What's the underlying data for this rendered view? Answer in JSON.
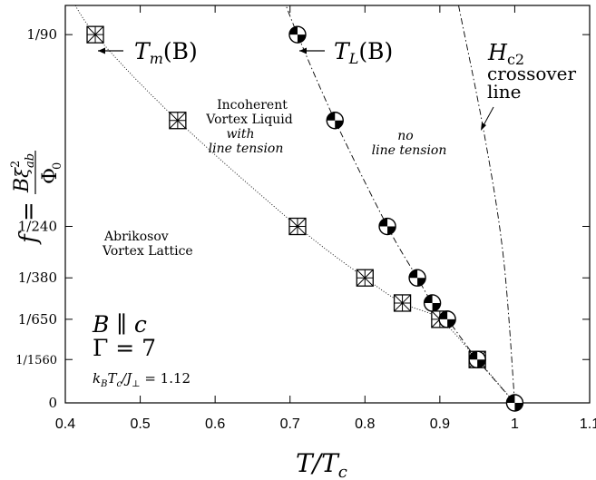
{
  "chart_data": {
    "type": "scatter",
    "xlabel": "T/T",
    "xlabel_sub": "c",
    "ylabel": "f = Bξ²ab / Φ0",
    "xlim": [
      0.4,
      1.1
    ],
    "x_ticks": [
      "0.4",
      "0.5",
      "0.6",
      "0.7",
      "0.8",
      "0.9",
      "1",
      "1.1"
    ],
    "y_ticks": [
      {
        "label": "1/90",
        "f": 0.011111
      },
      {
        "label": "1/240",
        "f": 0.0041667
      },
      {
        "label": "1/380",
        "f": 0.0026316
      },
      {
        "label": "1/650",
        "f": 0.0015385
      },
      {
        "label": "1/1560",
        "f": 0.000641
      },
      {
        "label": "0",
        "f": 0
      }
    ],
    "ylim": [
      0,
      0.0123
    ],
    "grid": false,
    "series": [
      {
        "name": "T_m(B)",
        "marker": "boxed-asterisk",
        "line": "dotted",
        "points": [
          {
            "x": 0.44,
            "f": 0.011111
          },
          {
            "x": 0.55,
            "f": 0.0078
          },
          {
            "x": 0.71,
            "f": 0.0041667
          },
          {
            "x": 0.8,
            "f": 0.0026316
          },
          {
            "x": 0.85,
            "f": 0.00195
          },
          {
            "x": 0.9,
            "f": 0.0015385
          },
          {
            "x": 0.95,
            "f": 0.000641
          }
        ]
      },
      {
        "name": "T_L(B)",
        "marker": "quartered-circle",
        "line": "dash-dot",
        "points": [
          {
            "x": 0.71,
            "f": 0.011111
          },
          {
            "x": 0.76,
            "f": 0.0078
          },
          {
            "x": 0.83,
            "f": 0.0041667
          },
          {
            "x": 0.87,
            "f": 0.0026316
          },
          {
            "x": 0.89,
            "f": 0.00195
          },
          {
            "x": 0.91,
            "f": 0.0015385
          },
          {
            "x": 0.95,
            "f": 0.000641
          },
          {
            "x": 1.0,
            "f": 0
          }
        ]
      },
      {
        "name": "H_c2 crossover line",
        "marker": "none",
        "line": "dash-dot",
        "points": [
          {
            "x": 0.925,
            "f": 0.0123
          },
          {
            "x": 0.96,
            "f": 0.0072
          },
          {
            "x": 0.985,
            "f": 0.0032
          },
          {
            "x": 1.0,
            "f": 0
          }
        ]
      }
    ],
    "labels": {
      "tm": {
        "main": "T",
        "sub": "m",
        "arg": "(B)"
      },
      "tl": {
        "main": "T",
        "sub": "L",
        "arg": "(B)"
      },
      "hc2": {
        "main": "H",
        "sub": "c2",
        "line1": "crossover",
        "line2": "line"
      },
      "liquid": {
        "line1": "Incoherent",
        "line2": "Vortex Liquid",
        "line3": "with",
        "line4": "line tension"
      },
      "notension": {
        "line1": "no",
        "line2": "line tension"
      },
      "lattice": {
        "line1": "Abrikosov",
        "line2": "Vortex Lattice"
      },
      "params": {
        "field": "B ∥ c",
        "gamma": "Γ = 7",
        "coupling": "k",
        "coupling_sub1": "B",
        "coupling_mid": "T",
        "coupling_sub2": "c",
        "coupling_mid2": "/J",
        "coupling_sub3": "⊥",
        "coupling_val": " = 1.12"
      }
    }
  }
}
